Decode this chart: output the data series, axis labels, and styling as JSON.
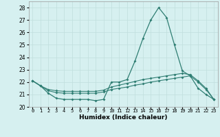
{
  "xlabel": "Humidex (Indice chaleur)",
  "background_color": "#d6f0f0",
  "line_color": "#2e7d72",
  "grid_color": "#c0dedd",
  "x_values": [
    0,
    1,
    2,
    3,
    4,
    5,
    6,
    7,
    8,
    9,
    10,
    11,
    12,
    13,
    14,
    15,
    16,
    17,
    18,
    19,
    20,
    21,
    22,
    23
  ],
  "line1_y": [
    22.1,
    21.7,
    21.1,
    20.7,
    20.6,
    20.6,
    20.6,
    20.6,
    20.5,
    20.6,
    22.0,
    22.0,
    22.2,
    23.7,
    25.5,
    27.0,
    28.0,
    27.2,
    25.0,
    22.9,
    22.5,
    21.5,
    21.0,
    20.6
  ],
  "line2_y": [
    22.1,
    21.7,
    21.3,
    21.15,
    21.1,
    21.1,
    21.1,
    21.1,
    21.1,
    21.2,
    21.4,
    21.5,
    21.6,
    21.75,
    21.85,
    22.0,
    22.1,
    22.2,
    22.3,
    22.4,
    22.5,
    22.0,
    21.4,
    20.6
  ],
  "line3_y": [
    22.1,
    21.7,
    21.4,
    21.3,
    21.25,
    21.25,
    21.25,
    21.25,
    21.25,
    21.35,
    21.6,
    21.75,
    21.9,
    22.05,
    22.2,
    22.3,
    22.4,
    22.5,
    22.6,
    22.7,
    22.6,
    22.1,
    21.5,
    20.6
  ],
  "ylim": [
    20,
    28.5
  ],
  "yticks": [
    20,
    21,
    22,
    23,
    24,
    25,
    26,
    27,
    28
  ],
  "xlim": [
    -0.5,
    23.5
  ],
  "xtick_labels": [
    "0",
    "1",
    "2",
    "3",
    "4",
    "5",
    "6",
    "7",
    "8",
    "9",
    "10",
    "11",
    "12",
    "13",
    "14",
    "15",
    "16",
    "17",
    "18",
    "19",
    "20",
    "21",
    "22",
    "23"
  ]
}
